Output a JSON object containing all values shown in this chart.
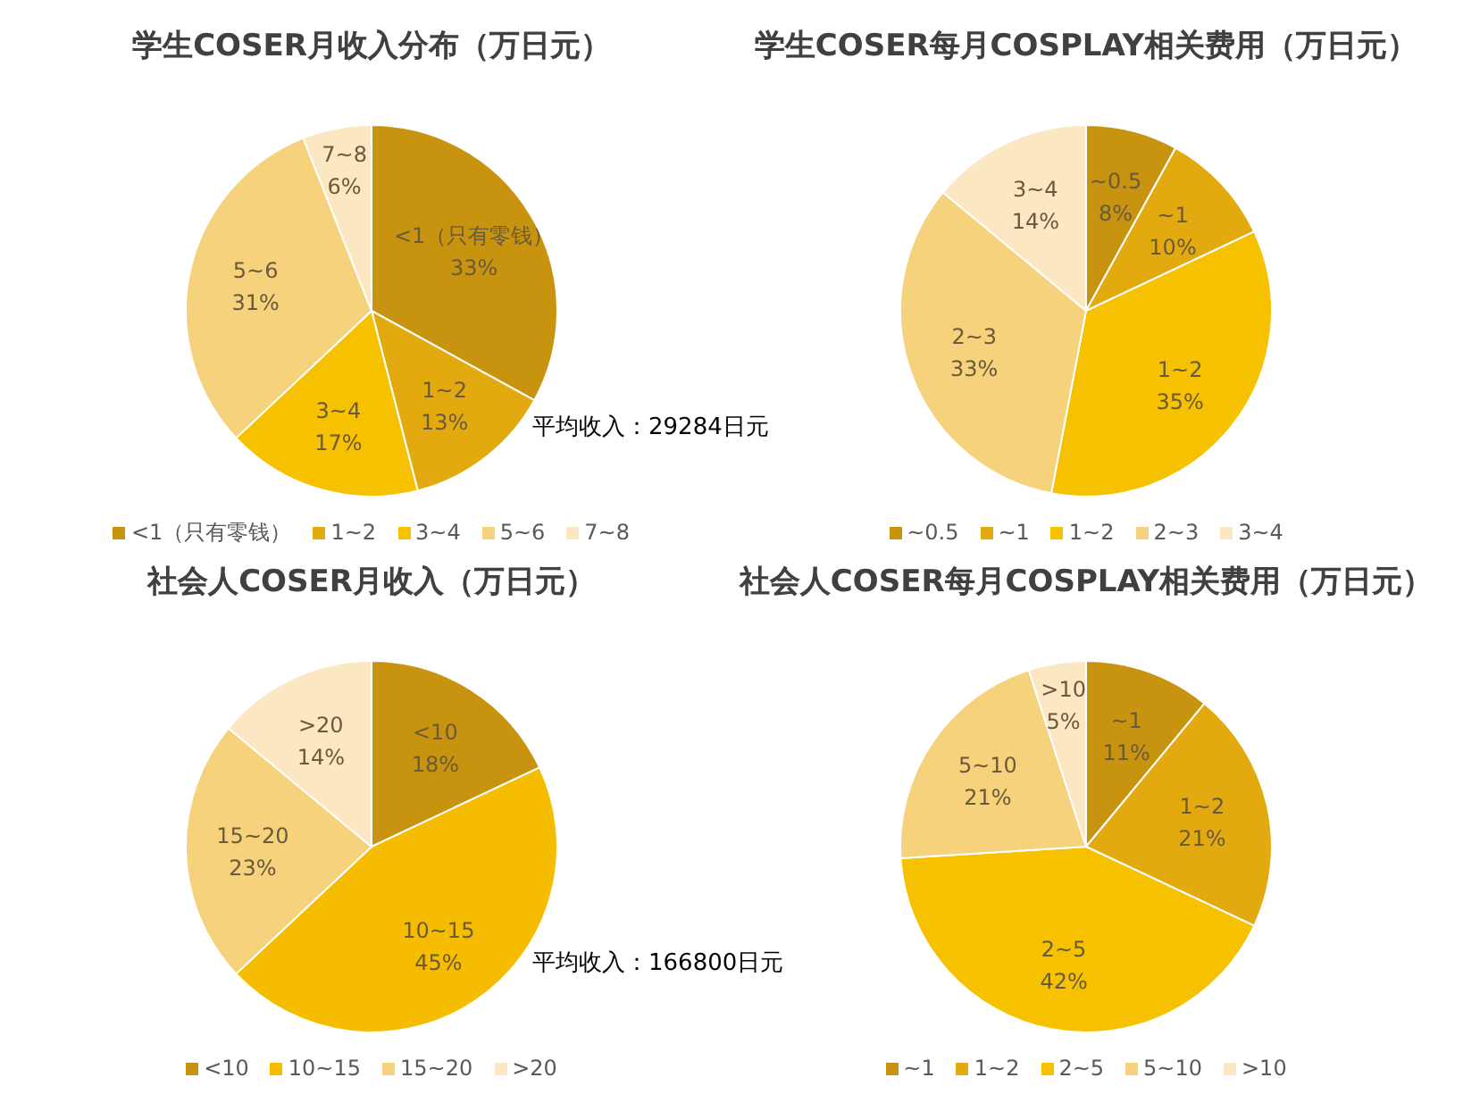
{
  "chart_data": [
    {
      "type": "pie",
      "title": "学生COSER月收入分布（万日元）",
      "categories": [
        "<1（只有零钱）",
        "1~2",
        "3~4",
        "5~6",
        "7~8"
      ],
      "values": [
        33,
        13,
        17,
        31,
        6
      ],
      "value_labels": [
        "33%",
        "13%",
        "17%",
        "31%",
        "6%"
      ],
      "colors": [
        "#c8940f",
        "#e3aa10",
        "#f6c200",
        "#f7d27c",
        "#fbe7c2"
      ],
      "legend": "bottom",
      "annotations": [
        "平均收入：29284日元"
      ]
    },
    {
      "type": "pie",
      "title": "学生COSER每月COSPLAY相关费用（万日元）",
      "categories": [
        "~0.5",
        "~1",
        "1~2",
        "2~3",
        "3~4"
      ],
      "values": [
        8,
        10,
        35,
        33,
        14
      ],
      "value_labels": [
        "8%",
        "10%",
        "35%",
        "33%",
        "14%"
      ],
      "colors": [
        "#c8940f",
        "#e3aa10",
        "#f6c200",
        "#f7d27c",
        "#fbe7c2"
      ],
      "legend": "bottom"
    },
    {
      "type": "pie",
      "title": "社会人COSER月收入（万日元）",
      "categories": [
        "<10",
        "10~15",
        "15~20",
        ">20"
      ],
      "values": [
        18,
        45,
        23,
        14
      ],
      "value_labels": [
        "18%",
        "45%",
        "23%",
        "14%"
      ],
      "colors": [
        "#c8940f",
        "#f6bd00",
        "#f7d27c",
        "#fbe7c2"
      ],
      "legend": "bottom",
      "annotations": [
        "平均收入：166800日元"
      ]
    },
    {
      "type": "pie",
      "title": "社会人COSER每月COSPLAY相关费用（万日元）",
      "categories": [
        "~1",
        "1~2",
        "2~5",
        "5~10",
        ">10"
      ],
      "values": [
        11,
        21,
        42,
        21,
        5
      ],
      "value_labels": [
        "11%",
        "21%",
        "42%",
        "21%",
        "5%"
      ],
      "colors": [
        "#c8940f",
        "#e3aa10",
        "#f6c200",
        "#f7d27c",
        "#fbe7c2"
      ],
      "legend": "bottom"
    }
  ]
}
